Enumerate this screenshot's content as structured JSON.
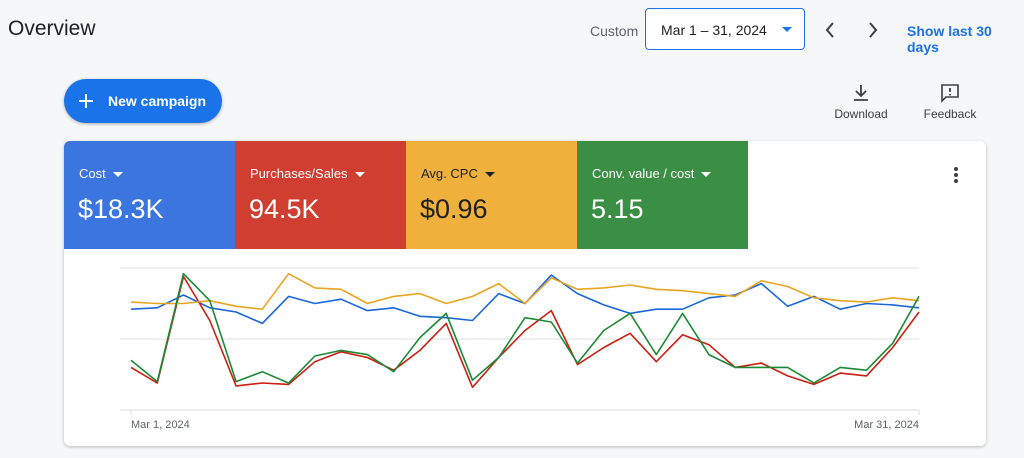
{
  "header": {
    "title": "Overview",
    "custom_label": "Custom",
    "date_range": "Mar 1 – 31, 2024",
    "show_last": "Show last 30 days"
  },
  "actions": {
    "new_campaign": "New campaign",
    "download": "Download",
    "feedback": "Feedback"
  },
  "metrics": [
    {
      "label": "Cost",
      "value": "$18.3K",
      "color": "#3a75e0"
    },
    {
      "label": "Purchases/Sales",
      "value": "94.5K",
      "color": "#cf3e31"
    },
    {
      "label": "Avg. CPC",
      "value": "$0.96",
      "color": "#f0b03c"
    },
    {
      "label": "Conv. value / cost",
      "value": "5.15",
      "color": "#3b8f45"
    }
  ],
  "chart_data": {
    "type": "line",
    "categories": [
      "Mar 1, 2024",
      null,
      null,
      null,
      null,
      null,
      null,
      null,
      null,
      null,
      null,
      null,
      null,
      null,
      null,
      null,
      null,
      null,
      null,
      null,
      null,
      null,
      null,
      null,
      null,
      null,
      null,
      null,
      null,
      null,
      "Mar 31, 2024"
    ],
    "ylim": [
      0,
      100
    ],
    "series": [
      {
        "color": "#1a66d9",
        "values": [
          71,
          72,
          81,
          72,
          69,
          61,
          80,
          75,
          78,
          70,
          72,
          66,
          65,
          63,
          82,
          75,
          95,
          82,
          74,
          68,
          71,
          71,
          79,
          81,
          89,
          73,
          80,
          71,
          75,
          74,
          72
        ]
      },
      {
        "color": "#cc1f14",
        "values": [
          30,
          19,
          94,
          63,
          17,
          19,
          18,
          34,
          41,
          37,
          28,
          42,
          61,
          16,
          37,
          56,
          70,
          32,
          44,
          54,
          34,
          53,
          46,
          30,
          33,
          24,
          18,
          26,
          24,
          44,
          69
        ]
      },
      {
        "color": "#eaa520",
        "values": [
          76,
          75,
          75,
          77,
          73,
          71,
          96,
          86,
          85,
          75,
          80,
          82,
          75,
          80,
          89,
          75,
          93,
          85,
          86,
          88,
          85,
          84,
          82,
          80,
          91,
          87,
          79,
          77,
          76,
          79,
          77
        ]
      },
      {
        "color": "#1c8a35",
        "values": [
          35,
          20,
          96,
          77,
          20,
          27,
          19,
          38,
          42,
          39,
          27,
          51,
          68,
          21,
          37,
          65,
          62,
          33,
          56,
          68,
          39,
          68,
          39,
          30,
          30,
          30,
          19,
          30,
          28,
          47,
          80
        ]
      }
    ]
  }
}
